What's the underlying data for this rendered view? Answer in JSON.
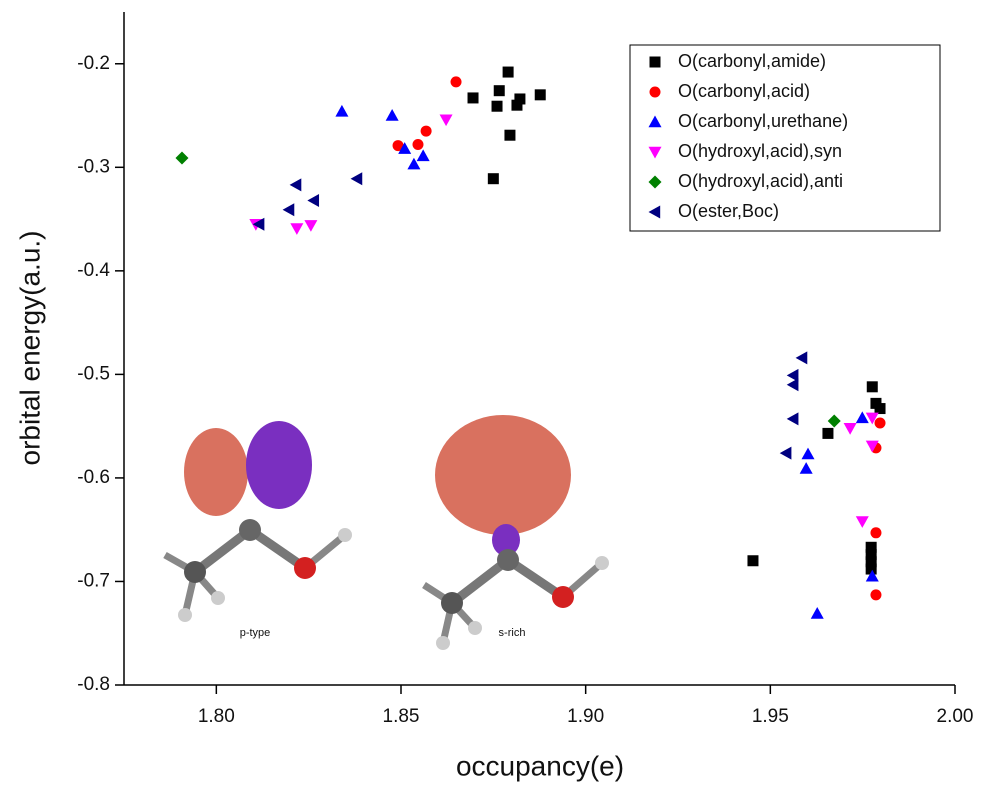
{
  "chart_data": {
    "type": "scatter",
    "x_label": "occupancy(e)",
    "y_label": "orbital energy(a.u.)",
    "xlim": [
      1.775,
      2.0
    ],
    "ylim": [
      -0.8,
      -0.15
    ],
    "xticks": [
      {
        "value": 1.8,
        "label": "1.80"
      },
      {
        "value": 1.85,
        "label": "1.85"
      },
      {
        "value": 1.9,
        "label": "1.90"
      },
      {
        "value": 1.95,
        "label": "1.95"
      },
      {
        "value": 2.0,
        "label": "2.00"
      }
    ],
    "yticks": [
      -0.8,
      -0.7,
      -0.6,
      -0.5,
      -0.4,
      -0.3,
      -0.2
    ],
    "legend": "upper right",
    "annotations": [
      "p-type",
      "s-rich"
    ],
    "series": [
      {
        "name": "O(carbonyl,amide)",
        "color": "#000000",
        "marker": "square",
        "x": [
          1.8695,
          1.876,
          1.8766,
          1.879,
          1.8814,
          1.8795,
          1.8822,
          1.8877,
          1.875,
          1.9776,
          1.9786,
          1.9797,
          1.9656,
          1.9453,
          1.9773,
          1.9773,
          1.9773,
          1.9773
        ],
        "y": [
          -0.233,
          -0.241,
          -0.226,
          -0.208,
          -0.24,
          -0.269,
          -0.234,
          -0.23,
          -0.311,
          -0.512,
          -0.528,
          -0.533,
          -0.557,
          -0.68,
          -0.667,
          -0.674,
          -0.681,
          -0.688
        ]
      },
      {
        "name": "O(carbonyl,acid)",
        "color": "#ff0000",
        "marker": "circle",
        "x": [
          1.8649,
          1.8492,
          1.8546,
          1.8568,
          1.9797,
          1.9786,
          1.9786,
          1.9786
        ],
        "y": [
          -0.2175,
          -0.279,
          -0.278,
          -0.265,
          -0.547,
          -0.571,
          -0.653,
          -0.713
        ]
      },
      {
        "name": "O(carbonyl,urethane)",
        "color": "#0000ff",
        "marker": "triangle-up",
        "x": [
          1.834,
          1.8476,
          1.851,
          1.8535,
          1.856,
          1.9602,
          1.9597,
          1.9749,
          1.9776,
          1.9627
        ],
        "y": [
          -0.246,
          -0.25,
          -0.282,
          -0.297,
          -0.289,
          -0.577,
          -0.591,
          -0.542,
          -0.695,
          -0.731
        ]
      },
      {
        "name": "O(hydroxyl,acid),syn",
        "color": "#ff00ff",
        "marker": "triangle-down",
        "x": [
          1.8622,
          1.8107,
          1.8218,
          1.8256,
          1.9716,
          1.9776,
          1.9776,
          1.9749
        ],
        "y": [
          -0.254,
          -0.355,
          -0.359,
          -0.356,
          -0.552,
          -0.542,
          -0.569,
          -0.642
        ]
      },
      {
        "name": "O(hydroxyl,acid),anti",
        "color": "#008000",
        "marker": "diamond",
        "x": [
          1.7907,
          1.9673
        ],
        "y": [
          -0.291,
          -0.545
        ]
      },
      {
        "name": "O(ester,Boc)",
        "color": "#000080",
        "marker": "triangle-left",
        "x": [
          1.8116,
          1.8216,
          1.8197,
          1.8264,
          1.8381,
          1.9586,
          1.9562,
          1.9562,
          1.9562,
          1.9543
        ],
        "y": [
          -0.355,
          -0.317,
          -0.341,
          -0.332,
          -0.311,
          -0.484,
          -0.501,
          -0.51,
          -0.543,
          -0.576
        ]
      }
    ]
  }
}
